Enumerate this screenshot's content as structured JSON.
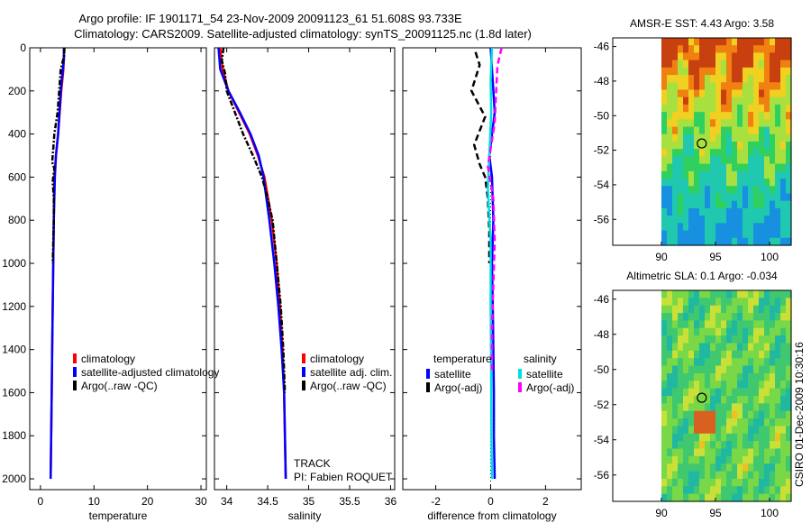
{
  "title": {
    "line1": "Argo profile: IF 1901171_54 23-Nov-2009 20091123_61 51.608S 93.733E",
    "line2": "Climatology: CARS2009. Satellite-adjusted climatology: synTS_20091125.nc (1.8d later)"
  },
  "side_label": "CSIRO 01-Dec-2009 10:30:16",
  "colors": {
    "climatology": "#ff0000",
    "satellite": "#0000ff",
    "argo": "#000000",
    "satellite_sal": "#00e0e0",
    "argo_sal": "#ff00ff"
  },
  "chart_data": [
    {
      "type": "line",
      "name": "temperature-panel",
      "xlabel": "temperature",
      "ylabel": "",
      "xlim": [
        -2,
        31
      ],
      "ylim": [
        2050,
        0
      ],
      "xticks": [
        0,
        10,
        20,
        30
      ],
      "yticks": [
        0,
        200,
        400,
        600,
        800,
        1000,
        1200,
        1400,
        1600,
        1800,
        2000
      ],
      "legend": {
        "position": "bottom-right",
        "entries": [
          "climatology",
          "satellite-adjusted climatology",
          "Argo(..raw -QC)"
        ]
      },
      "series": [
        {
          "name": "climatology",
          "color": "#ff0000",
          "style": "solid",
          "points": [
            [
              4.4,
              0
            ],
            [
              4.3,
              100
            ],
            [
              3.9,
              200
            ],
            [
              3.3,
              400
            ],
            [
              2.9,
              500
            ],
            [
              2.6,
              600
            ],
            [
              2.5,
              800
            ],
            [
              2.4,
              1000
            ],
            [
              2.3,
              1200
            ],
            [
              2.2,
              1400
            ],
            [
              2.1,
              1600
            ],
            [
              2.0,
              1800
            ],
            [
              1.9,
              2000
            ]
          ]
        },
        {
          "name": "satellite-adjusted climatology",
          "color": "#0000ff",
          "style": "solid",
          "points": [
            [
              4.4,
              0
            ],
            [
              4.4,
              50
            ],
            [
              4.2,
              100
            ],
            [
              3.8,
              200
            ],
            [
              3.3,
              400
            ],
            [
              2.9,
              500
            ],
            [
              2.7,
              600
            ],
            [
              2.5,
              800
            ],
            [
              2.4,
              1000
            ],
            [
              2.3,
              1200
            ],
            [
              2.2,
              1400
            ],
            [
              2.1,
              1600
            ],
            [
              2.0,
              1800
            ],
            [
              1.9,
              2000
            ]
          ]
        },
        {
          "name": "Argo(..raw -QC)",
          "color": "#000000",
          "style": "dashdot",
          "points": [
            [
              4.5,
              0
            ],
            [
              4.4,
              40
            ],
            [
              3.8,
              100
            ],
            [
              3.5,
              200
            ],
            [
              3.2,
              300
            ],
            [
              2.6,
              400
            ],
            [
              2.4,
              470
            ],
            [
              2.2,
              530
            ],
            [
              2.6,
              560
            ],
            [
              2.3,
              620
            ],
            [
              2.5,
              700
            ],
            [
              2.5,
              800
            ],
            [
              2.4,
              900
            ],
            [
              2.3,
              1000
            ]
          ]
        }
      ]
    },
    {
      "type": "line",
      "name": "salinity-panel",
      "xlabel": "salinity",
      "xlim": [
        33.85,
        36.05
      ],
      "ylim": [
        2050,
        0
      ],
      "xticks": [
        34,
        34.5,
        35,
        35.5,
        36
      ],
      "legend": {
        "position": "bottom-right",
        "entries": [
          "climatology",
          "satellite adj. clim.",
          "Argo(..raw -QC)"
        ]
      },
      "annotations": [
        "TRACK",
        "PI: Fabien ROQUET"
      ],
      "series": [
        {
          "name": "climatology",
          "color": "#ff0000",
          "style": "solid",
          "points": [
            [
              33.92,
              0
            ],
            [
              33.95,
              100
            ],
            [
              34.02,
              200
            ],
            [
              34.15,
              300
            ],
            [
              34.28,
              400
            ],
            [
              34.38,
              500
            ],
            [
              34.46,
              600
            ],
            [
              34.55,
              800
            ],
            [
              34.61,
              1000
            ],
            [
              34.65,
              1200
            ],
            [
              34.68,
              1400
            ],
            [
              34.7,
              1600
            ],
            [
              34.71,
              1800
            ],
            [
              34.72,
              2000
            ]
          ]
        },
        {
          "name": "satellite adj. clim.",
          "color": "#0000ff",
          "style": "solid",
          "points": [
            [
              33.9,
              0
            ],
            [
              33.92,
              100
            ],
            [
              34.02,
              200
            ],
            [
              34.16,
              300
            ],
            [
              34.29,
              400
            ],
            [
              34.39,
              500
            ],
            [
              34.45,
              600
            ],
            [
              34.52,
              800
            ],
            [
              34.58,
              1000
            ],
            [
              34.63,
              1200
            ],
            [
              34.67,
              1400
            ],
            [
              34.7,
              1600
            ],
            [
              34.71,
              1800
            ],
            [
              34.72,
              2000
            ]
          ]
        },
        {
          "name": "Argo(..raw -QC)",
          "color": "#000000",
          "style": "dashdot",
          "points": [
            [
              33.96,
              0
            ],
            [
              33.94,
              60
            ],
            [
              33.98,
              120
            ],
            [
              34.0,
              200
            ],
            [
              34.1,
              300
            ],
            [
              34.2,
              400
            ],
            [
              34.32,
              500
            ],
            [
              34.43,
              600
            ],
            [
              34.5,
              700
            ],
            [
              34.56,
              800
            ],
            [
              34.61,
              1000
            ],
            [
              34.66,
              1200
            ],
            [
              34.69,
              1400
            ],
            [
              34.71,
              1600
            ]
          ]
        }
      ]
    },
    {
      "type": "line",
      "name": "difference-panel",
      "xlabel": "difference from climatology",
      "xlim": [
        -3.2,
        3.3
      ],
      "ylim": [
        2050,
        0
      ],
      "xticks": [
        -2,
        0,
        2
      ],
      "legend": {
        "position": "bottom",
        "groups": [
          "temperature",
          "salinity"
        ],
        "entries": [
          "satellite",
          "Argo(-adj)",
          "satellite",
          "Argo(-adj)"
        ]
      },
      "series": [
        {
          "name": "temperature satellite",
          "color": "#0000ff",
          "style": "solid",
          "points": [
            [
              0.0,
              0
            ],
            [
              0.05,
              100
            ],
            [
              0.1,
              200
            ],
            [
              0.15,
              300
            ],
            [
              -0.05,
              500
            ],
            [
              0.05,
              600
            ],
            [
              0.1,
              800
            ],
            [
              0.05,
              1000
            ],
            [
              0.08,
              1200
            ],
            [
              0.1,
              1400
            ],
            [
              0.12,
              1600
            ],
            [
              0.12,
              1800
            ],
            [
              0.15,
              2000
            ]
          ]
        },
        {
          "name": "temperature Argo(-adj)",
          "color": "#000000",
          "style": "dashed",
          "points": [
            [
              -0.55,
              20
            ],
            [
              -0.4,
              80
            ],
            [
              -0.7,
              200
            ],
            [
              -0.2,
              320
            ],
            [
              -0.6,
              450
            ],
            [
              -0.4,
              540
            ],
            [
              -0.2,
              600
            ],
            [
              -0.1,
              700
            ],
            [
              -0.05,
              850
            ],
            [
              -0.05,
              1000
            ]
          ]
        },
        {
          "name": "salinity satellite",
          "color": "#00e0e0",
          "style": "solid",
          "points": [
            [
              0.05,
              0
            ],
            [
              0.0,
              150
            ],
            [
              0.02,
              300
            ],
            [
              -0.05,
              500
            ],
            [
              -0.1,
              650
            ],
            [
              0.0,
              900
            ],
            [
              0.0,
              1200
            ],
            [
              0.02,
              1500
            ],
            [
              0.03,
              1800
            ],
            [
              0.05,
              2000
            ]
          ]
        },
        {
          "name": "salinity Argo(-adj)",
          "color": "#ff00ff",
          "style": "dashed",
          "points": [
            [
              0.4,
              0
            ],
            [
              0.25,
              80
            ],
            [
              0.2,
              200
            ],
            [
              0.15,
              350
            ],
            [
              -0.1,
              550
            ],
            [
              0.1,
              700
            ],
            [
              0.15,
              900
            ],
            [
              0.1,
              1100
            ],
            [
              0.05,
              1300
            ],
            [
              0.05,
              1500
            ]
          ]
        }
      ]
    },
    {
      "type": "heatmap",
      "name": "sst-map",
      "title": "AMSR-E SST: 4.43 Argo: 3.58",
      "xlim": [
        85.5,
        102
      ],
      "ylim": [
        -57.5,
        -45.5
      ],
      "xticks": [
        90,
        95,
        100
      ],
      "yticks": [
        -46,
        -48,
        -50,
        -52,
        -54,
        -56
      ],
      "marker": {
        "lon": 93.733,
        "lat": -51.608
      }
    },
    {
      "type": "heatmap",
      "name": "sla-map",
      "title": "Altimetric SLA: 0.1 Argo: -0.034",
      "xlim": [
        85.5,
        102
      ],
      "ylim": [
        -57.5,
        -45.5
      ],
      "xticks": [
        90,
        95,
        100
      ],
      "yticks": [
        -46,
        -48,
        -50,
        -52,
        -54,
        -56
      ],
      "marker": {
        "lon": 93.733,
        "lat": -51.608
      }
    }
  ]
}
